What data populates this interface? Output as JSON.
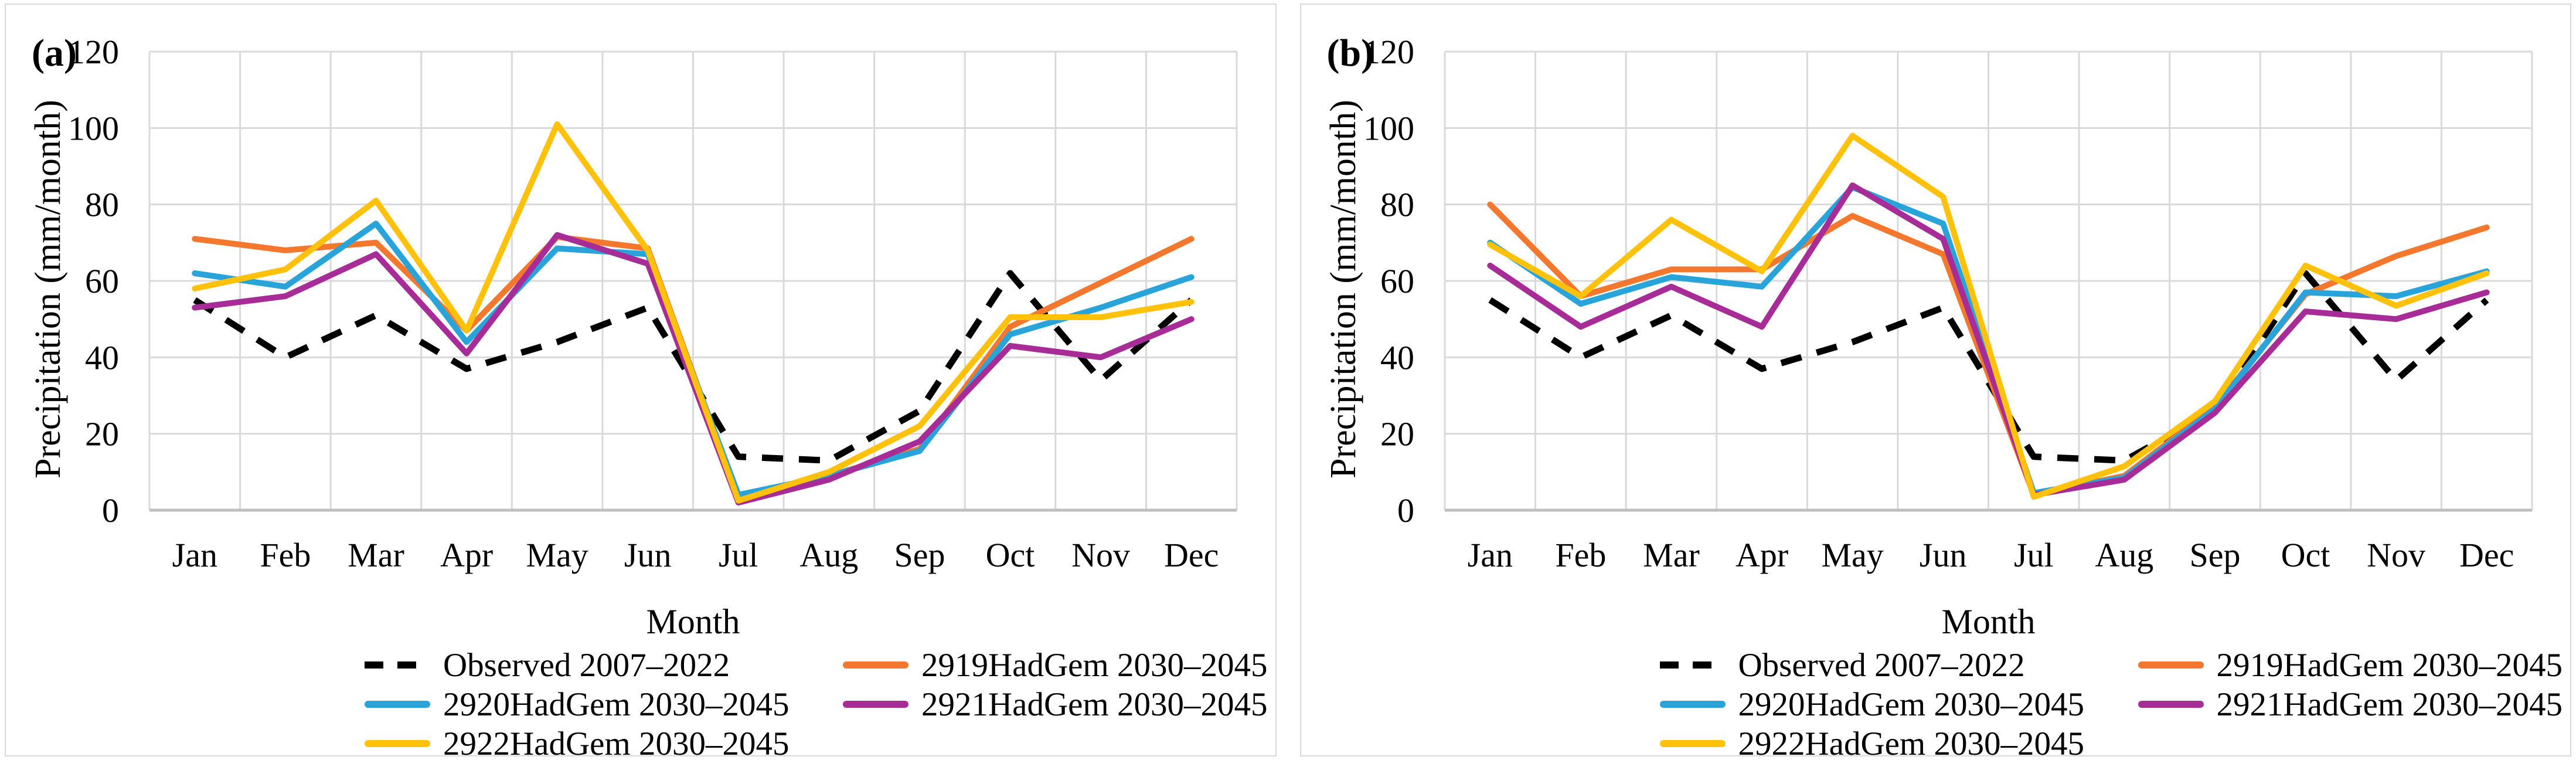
{
  "figure": {
    "background": "#FFFFFF",
    "panel_border_color": "#D9D9D9",
    "grid_color": "#D9D9D9",
    "axis_line_color": "#BFBFBF",
    "text_color": "#000000"
  },
  "panels": [
    {
      "corner_label": "(a)"
    },
    {
      "corner_label": "(b)"
    }
  ],
  "chart_data": [
    {
      "type": "line",
      "panel_label": "(a)",
      "title": "",
      "xlabel": "Month",
      "ylabel": "Precipitation (mm/month)",
      "ylim": [
        0,
        120
      ],
      "y_ticks": [
        0,
        20,
        40,
        60,
        80,
        100,
        120
      ],
      "grid": true,
      "legend_position": "bottom, 2 columns",
      "categories": [
        "Jan",
        "Feb",
        "Mar",
        "Apr",
        "May",
        "Jun",
        "Jul",
        "Aug",
        "Sep",
        "Oct",
        "Nov",
        "Dec"
      ],
      "series": [
        {
          "name": "Observed 2007–2022",
          "color": "#000000",
          "dashed": true,
          "values": [
            55,
            40,
            51,
            37,
            44,
            53,
            14,
            13,
            26,
            62,
            34,
            55
          ]
        },
        {
          "name": "2919HadGem 2030–2045",
          "color": "#F4772E",
          "dashed": false,
          "values": [
            71,
            68,
            70,
            47,
            71.5,
            68.5,
            3,
            9,
            16,
            48,
            59.5,
            71
          ]
        },
        {
          "name": "2920HadGem 2030–2045",
          "color": "#29A4DB",
          "dashed": false,
          "values": [
            62,
            58.5,
            75,
            44,
            68.5,
            67,
            4,
            9,
            15.5,
            46,
            53,
            61
          ]
        },
        {
          "name": "2921HadGem 2030–2045",
          "color": "#A82C98",
          "dashed": false,
          "values": [
            53,
            56,
            67,
            41,
            72,
            64.5,
            2,
            8,
            18,
            43,
            40,
            50
          ]
        },
        {
          "name": "2922HadGem 2030–2045",
          "color": "#FFC10A",
          "dashed": false,
          "values": [
            58,
            63,
            81,
            47,
            101,
            68,
            2.5,
            10,
            22,
            50.5,
            50.5,
            54.5
          ]
        }
      ]
    },
    {
      "type": "line",
      "panel_label": "(b)",
      "title": "",
      "xlabel": "Month",
      "ylabel": "Precipitation (mm/month)",
      "ylim": [
        0,
        120
      ],
      "y_ticks": [
        0,
        20,
        40,
        60,
        80,
        100,
        120
      ],
      "grid": true,
      "legend_position": "bottom, 2 columns",
      "categories": [
        "Jan",
        "Feb",
        "Mar",
        "Apr",
        "May",
        "Jun",
        "Jul",
        "Aug",
        "Sep",
        "Oct",
        "Nov",
        "Dec"
      ],
      "series": [
        {
          "name": "Observed 2007–2022",
          "color": "#000000",
          "dashed": true,
          "values": [
            55,
            40,
            51,
            37,
            44,
            53,
            14,
            13,
            26,
            62,
            34,
            55
          ]
        },
        {
          "name": "2919HadGem 2030–2045",
          "color": "#F4772E",
          "dashed": false,
          "values": [
            80,
            56,
            63,
            63,
            77,
            67,
            4,
            9,
            27,
            56.5,
            66.5,
            74
          ]
        },
        {
          "name": "2920HadGem 2030–2045",
          "color": "#29A4DB",
          "dashed": false,
          "values": [
            70,
            54,
            61,
            58.5,
            84.5,
            75,
            4.5,
            8.5,
            26.5,
            57,
            56,
            62.5
          ]
        },
        {
          "name": "2921HadGem 2030–2045",
          "color": "#A82C98",
          "dashed": false,
          "values": [
            64,
            48,
            58.5,
            48,
            85,
            71,
            4,
            8,
            25.5,
            52,
            50,
            57
          ]
        },
        {
          "name": "2922HadGem 2030–2045",
          "color": "#FFC10A",
          "dashed": false,
          "values": [
            69.5,
            56,
            76,
            62.5,
            98,
            82,
            3.5,
            11.5,
            28.5,
            64,
            53.5,
            62
          ]
        }
      ]
    }
  ]
}
